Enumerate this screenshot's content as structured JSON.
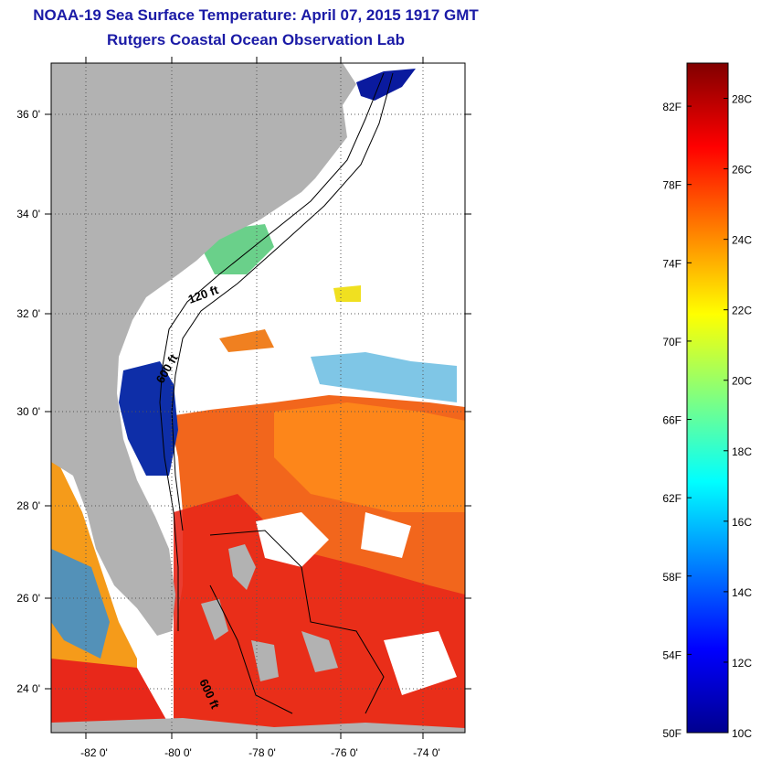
{
  "title": {
    "line1": "NOAA-19 Sea Surface Temperature:  April 07, 2015 1917 GMT",
    "line2": "Rutgers Coastal Ocean Observation Lab"
  },
  "map": {
    "lon_labels": [
      "-82 0'",
      "-80 0'",
      "-78 0'",
      "-76 0'",
      "-74 0'"
    ],
    "lat_labels": [
      "36 0'",
      "34 0'",
      "32 0'",
      "30 0'",
      "28 0'",
      "26 0'",
      "24 0'"
    ],
    "contour_labels": [
      "120 ft",
      "600 ft",
      "600 ft"
    ],
    "colors": {
      "land": "#b2b2b2",
      "cloud": "#ffffff",
      "cold": "#0a1a9e",
      "warm": "#f0501e"
    }
  },
  "colorbar": {
    "fahrenheit_labels": [
      "82F",
      "78F",
      "74F",
      "70F",
      "66F",
      "62F",
      "58F",
      "54F",
      "50F"
    ],
    "celsius_labels": [
      "28C",
      "26C",
      "24C",
      "22C",
      "20C",
      "18C",
      "16C",
      "14C",
      "12C",
      "10C"
    ],
    "range_c": [
      10,
      29
    ],
    "colormap": "jet"
  }
}
